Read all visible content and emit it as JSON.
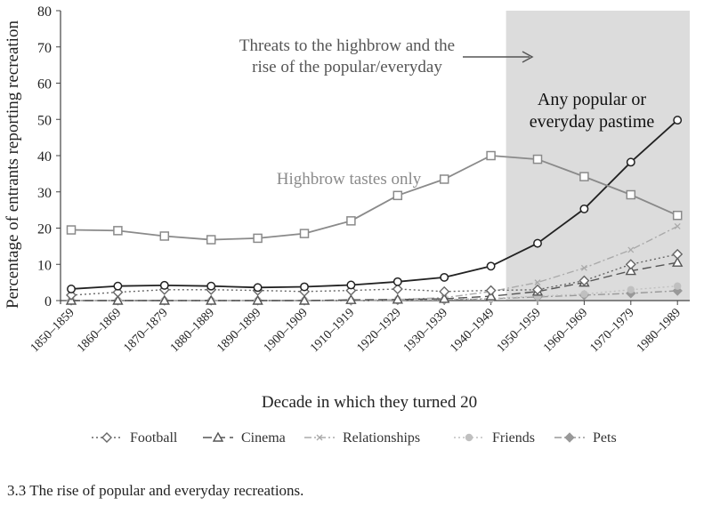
{
  "chart_data": {
    "type": "line",
    "xlabel": "Decade in which they turned 20",
    "ylabel": "Percentage of entrants reporting recreation",
    "ylim": [
      0,
      80
    ],
    "yticks": [
      0,
      10,
      20,
      30,
      40,
      50,
      60,
      70,
      80
    ],
    "categories": [
      "1850–1859",
      "1860–1869",
      "1870–1879",
      "1880–1889",
      "1890–1899",
      "1900–1909",
      "1910–1919",
      "1920–1929",
      "1930–1939",
      "1940–1949",
      "1950–1959",
      "1960–1969",
      "1970–1979",
      "1980–1989"
    ],
    "grid": false,
    "legend_position": "bottom",
    "shaded_region": {
      "from": "1940–1949",
      "to": "1980–1989",
      "color": "#dcdcdc"
    },
    "series": [
      {
        "name": "Highbrow tastes only",
        "color": "#8a8a8a",
        "marker": "square",
        "dash": "solid",
        "values": [
          19.5,
          19.3,
          17.8,
          16.8,
          17.2,
          18.5,
          22,
          29,
          33.5,
          40,
          39,
          34.2,
          29.2,
          23.5
        ]
      },
      {
        "name": "Any popular or everyday pastime",
        "color": "#222222",
        "marker": "circle",
        "dash": "solid",
        "values": [
          3.2,
          4.0,
          4.2,
          4.0,
          3.6,
          3.8,
          4.3,
          5.2,
          6.4,
          9.5,
          15.8,
          25.3,
          38.2,
          49.8
        ]
      },
      {
        "name": "Football",
        "color": "#666666",
        "marker": "diamond-open",
        "dash": "dotted",
        "values": [
          1.5,
          2.3,
          3.0,
          3.0,
          2.8,
          2.5,
          2.8,
          3.2,
          2.5,
          2.8,
          3.0,
          5.5,
          10.0,
          12.8
        ]
      },
      {
        "name": "Cinema",
        "color": "#555555",
        "marker": "triangle-open",
        "dash": "longdash",
        "values": [
          0,
          0,
          0,
          0,
          0,
          0,
          0.2,
          0.3,
          0.5,
          1.2,
          2.5,
          5.0,
          8.2,
          10.5
        ]
      },
      {
        "name": "Relationships",
        "color": "#aaaaaa",
        "marker": "x",
        "dash": "dashdot",
        "values": [
          0,
          0,
          0,
          0,
          0,
          0,
          0,
          0.3,
          0.8,
          2.5,
          5.0,
          9.0,
          14.0,
          20.5
        ]
      },
      {
        "name": "Friends",
        "color": "#c0c0c0",
        "marker": "circle-filled",
        "dash": "dotted",
        "values": [
          0,
          0,
          0,
          0,
          0,
          0,
          0,
          0.2,
          0.3,
          0.6,
          1.2,
          1.8,
          3.0,
          4.0
        ]
      },
      {
        "name": "Pets",
        "color": "#999999",
        "marker": "diamond-filled",
        "dash": "dashdot",
        "values": [
          0,
          0,
          0,
          0,
          0,
          0,
          0,
          0.1,
          0.2,
          0.5,
          1.0,
          1.5,
          2.0,
          2.7
        ]
      }
    ],
    "legend_series": [
      "Football",
      "Cinema",
      "Relationships",
      "Friends",
      "Pets"
    ],
    "annotations": [
      {
        "text_lines": [
          "Threats to the highbrow and the",
          "rise of the popular/everyday"
        ],
        "arrow": "right"
      },
      {
        "text_lines": [
          "Any popular or",
          "everyday pastime"
        ]
      },
      {
        "text_lines": [
          "Highbrow tastes only"
        ]
      }
    ]
  },
  "caption": "3.3  The rise of popular and everyday recreations."
}
